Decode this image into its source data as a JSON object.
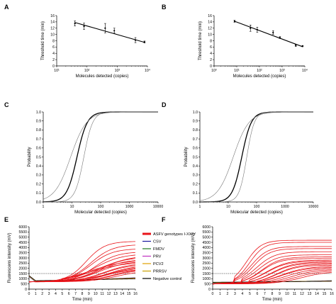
{
  "chart_data": [
    {
      "panel": "A",
      "type": "scatter",
      "xscale": "log",
      "xlim": [
        10,
        10000
      ],
      "ylim": [
        0,
        16
      ],
      "xticks": [
        {
          "v": 10,
          "t": "10¹"
        },
        {
          "v": 100,
          "t": "10²"
        },
        {
          "v": 1000,
          "t": "10³"
        },
        {
          "v": 10000,
          "t": "10⁴"
        }
      ],
      "yticks": [
        0,
        2,
        4,
        6,
        8,
        10,
        12,
        14,
        16
      ],
      "xlabel": "Molecules detected (copies)",
      "ylabel": "Threshold time (min)",
      "points": [
        {
          "x": 40,
          "y": 13.5,
          "err": 0.8
        },
        {
          "x": 80,
          "y": 12.6,
          "err": 1.0
        },
        {
          "x": 400,
          "y": 12.0,
          "err": 1.5
        },
        {
          "x": 800,
          "y": 11.2,
          "err": 0.8
        },
        {
          "x": 4000,
          "y": 8.2,
          "err": 0.8
        },
        {
          "x": 8000,
          "y": 7.6,
          "err": 0.3
        }
      ],
      "fit": [
        [
          40,
          13.8
        ],
        [
          8000,
          7.5
        ]
      ]
    },
    {
      "panel": "B",
      "type": "scatter",
      "xscale": "log",
      "xlim": [
        1,
        10000
      ],
      "ylim": [
        0,
        16
      ],
      "xticks": [
        {
          "v": 1,
          "t": "10⁰"
        },
        {
          "v": 10,
          "t": "10¹"
        },
        {
          "v": 100,
          "t": "10²"
        },
        {
          "v": 1000,
          "t": "10³"
        },
        {
          "v": 10000,
          "t": "10⁴"
        }
      ],
      "yticks": [
        0,
        2,
        4,
        6,
        8,
        10,
        12,
        14,
        16
      ],
      "xlabel": "Molecules detected (copies)",
      "ylabel": "Threshold time (min)",
      "points": [
        {
          "x": 8,
          "y": 14.2,
          "err": 0.3
        },
        {
          "x": 40,
          "y": 12.0,
          "err": 1.0
        },
        {
          "x": 80,
          "y": 11.5,
          "err": 0.8
        },
        {
          "x": 400,
          "y": 10.6,
          "err": 0.6
        },
        {
          "x": 800,
          "y": 9.0,
          "err": 0.3
        },
        {
          "x": 4000,
          "y": 6.5,
          "err": 0.3
        },
        {
          "x": 8000,
          "y": 6.3,
          "err": 0.2
        }
      ],
      "fit": [
        [
          8,
          14.2
        ],
        [
          8000,
          6.1
        ]
      ]
    },
    {
      "panel": "C",
      "type": "line",
      "xscale": "log",
      "xlim": [
        1,
        10000
      ],
      "ylim": [
        0,
        1
      ],
      "xticks": [
        {
          "v": 1,
          "t": "1"
        },
        {
          "v": 10,
          "t": "10"
        },
        {
          "v": 100,
          "t": "100"
        },
        {
          "v": 1000,
          "t": "1000"
        },
        {
          "v": 10000,
          "t": "10000"
        }
      ],
      "yticks": [
        0,
        0.1,
        0.2,
        0.3,
        0.4,
        0.5,
        0.6,
        0.7,
        0.8,
        0.9,
        1.0
      ],
      "xlabel": "Molecular detected (copies)",
      "ylabel": "Probability",
      "curves": [
        {
          "role": "main",
          "x50": 15,
          "k": 5.6
        },
        {
          "role": "lower",
          "x50": 9,
          "k": 3.6
        },
        {
          "role": "upper",
          "x50": 26,
          "k": 6.5
        }
      ]
    },
    {
      "panel": "D",
      "type": "line",
      "xscale": "log",
      "xlim": [
        1,
        10000
      ],
      "ylim": [
        0,
        1
      ],
      "xticks": [
        {
          "v": 1,
          "t": "1"
        },
        {
          "v": 10,
          "t": "10"
        },
        {
          "v": 100,
          "t": "100"
        },
        {
          "v": 1000,
          "t": "1000"
        },
        {
          "v": 10000,
          "t": "10000"
        }
      ],
      "yticks": [
        0,
        0.1,
        0.2,
        0.3,
        0.4,
        0.5,
        0.6,
        0.7,
        0.8,
        0.9,
        1.0
      ],
      "xlabel": "Molecular detected (copies)",
      "ylabel": "Probability",
      "curves": [
        {
          "role": "main",
          "x50": 30,
          "k": 6.0
        },
        {
          "role": "lower",
          "x50": 15,
          "k": 3.6
        },
        {
          "role": "upper",
          "x50": 45,
          "k": 7.5
        }
      ]
    },
    {
      "panel": "E",
      "type": "line",
      "xlim": [
        0,
        16
      ],
      "ylim": [
        0,
        6000
      ],
      "xticks": [
        0,
        1,
        2,
        3,
        4,
        5,
        6,
        7,
        8,
        9,
        10,
        11,
        12,
        13,
        14,
        15,
        16
      ],
      "yticks": [
        0,
        500,
        1000,
        1500,
        2000,
        2500,
        3000,
        3500,
        4000,
        4500,
        5000,
        5500,
        6000
      ],
      "xlabel": "Time (min)",
      "ylabel": "Fluorescens intensity (mV)",
      "threshold": 1500,
      "legend": [
        "ASFV genotypes I-XXIV",
        "CSV",
        "FMDV",
        "PRV",
        "PCV2",
        "PRRSV",
        "Negative control"
      ],
      "red_curves": [
        {
          "start": 4,
          "end": 4600,
          "k": 0.7,
          "mid": 10.5
        },
        {
          "start": 4,
          "end": 4300,
          "k": 0.6,
          "mid": 11
        },
        {
          "start": 5,
          "end": 3900,
          "k": 0.6,
          "mid": 11
        },
        {
          "start": 5,
          "end": 3600,
          "k": 0.6,
          "mid": 11.5
        },
        {
          "start": 5,
          "end": 3400,
          "k": 0.5,
          "mid": 11.5
        },
        {
          "start": 6,
          "end": 3100,
          "k": 0.5,
          "mid": 12
        },
        {
          "start": 6,
          "end": 2900,
          "k": 0.5,
          "mid": 12
        },
        {
          "start": 6,
          "end": 2700,
          "k": 0.5,
          "mid": 12
        },
        {
          "start": 7,
          "end": 2500,
          "k": 0.5,
          "mid": 12.5
        },
        {
          "start": 7,
          "end": 2400,
          "k": 0.5,
          "mid": 12.5
        },
        {
          "start": 7,
          "end": 2300,
          "k": 0.5,
          "mid": 13
        },
        {
          "start": 8,
          "end": 2200,
          "k": 0.5,
          "mid": 13
        },
        {
          "start": 8,
          "end": 2100,
          "k": 0.5,
          "mid": 13
        },
        {
          "start": 9,
          "end": 2000,
          "k": 0.5,
          "mid": 13.5
        },
        {
          "start": 9,
          "end": 1900,
          "k": 0.5,
          "mid": 13.5
        },
        {
          "start": 10,
          "end": 1800,
          "k": 0.5,
          "mid": 14
        },
        {
          "start": 5,
          "end": 2800,
          "k": 0.4,
          "mid": 11
        },
        {
          "start": 6,
          "end": 2600,
          "k": 0.4,
          "mid": 11
        },
        {
          "start": 7,
          "end": 3300,
          "k": 0.4,
          "mid": 12
        },
        {
          "start": 8,
          "end": 2000,
          "k": 0.4,
          "mid": 12.5
        }
      ],
      "neg_curves": [
        {
          "color": "#1a1aa0",
          "base": 700,
          "slope": 25
        },
        {
          "color": "#1f7a1f",
          "base": 720,
          "slope": 22
        },
        {
          "color": "#c030c0",
          "base": 740,
          "slope": 20
        },
        {
          "color": "#e0a000",
          "base": 760,
          "slope": 18
        },
        {
          "color": "#c9a000",
          "base": 780,
          "slope": 15
        },
        {
          "color": "#000000",
          "base": 800,
          "slope": 12
        }
      ]
    },
    {
      "panel": "F",
      "type": "line",
      "xlim": [
        0,
        16
      ],
      "ylim": [
        0,
        6000
      ],
      "xticks": [
        0,
        1,
        2,
        3,
        4,
        5,
        6,
        7,
        8,
        9,
        10,
        11,
        12,
        13,
        14,
        15,
        16
      ],
      "yticks": [
        0,
        500,
        1000,
        1500,
        2000,
        2500,
        3000,
        3500,
        4000,
        4500,
        5000,
        5500,
        6000
      ],
      "xlabel": "Time (min)",
      "ylabel": "Fluorescens intensity (mV)",
      "threshold": 1500,
      "red_curves": [
        {
          "start": 3,
          "end": 4700,
          "k": 1.0,
          "mid": 7.5
        },
        {
          "start": 3,
          "end": 4500,
          "k": 1.0,
          "mid": 7.8
        },
        {
          "start": 3,
          "end": 4100,
          "k": 0.9,
          "mid": 8
        },
        {
          "start": 3,
          "end": 3900,
          "k": 0.9,
          "mid": 8.2
        },
        {
          "start": 4,
          "end": 3600,
          "k": 0.8,
          "mid": 8.5
        },
        {
          "start": 4,
          "end": 3300,
          "k": 0.8,
          "mid": 8.7
        },
        {
          "start": 4,
          "end": 3100,
          "k": 0.8,
          "mid": 9
        },
        {
          "start": 4,
          "end": 2950,
          "k": 0.8,
          "mid": 9
        },
        {
          "start": 5,
          "end": 2800,
          "k": 0.7,
          "mid": 9.5
        },
        {
          "start": 5,
          "end": 2700,
          "k": 0.7,
          "mid": 9.5
        },
        {
          "start": 5,
          "end": 2600,
          "k": 0.7,
          "mid": 10
        },
        {
          "start": 5,
          "end": 2500,
          "k": 0.7,
          "mid": 10
        },
        {
          "start": 6,
          "end": 2400,
          "k": 0.7,
          "mid": 10.5
        },
        {
          "start": 6,
          "end": 2300,
          "k": 0.7,
          "mid": 10.5
        },
        {
          "start": 6,
          "end": 2200,
          "k": 0.6,
          "mid": 11
        },
        {
          "start": 7,
          "end": 2100,
          "k": 0.6,
          "mid": 11
        },
        {
          "start": 7,
          "end": 2000,
          "k": 0.6,
          "mid": 11.5
        },
        {
          "start": 8,
          "end": 1900,
          "k": 0.6,
          "mid": 12
        },
        {
          "start": 8,
          "end": 1800,
          "k": 0.6,
          "mid": 12.5
        },
        {
          "start": 9,
          "end": 1700,
          "k": 0.6,
          "mid": 13
        }
      ],
      "neg_curves": [
        {
          "color": "#1a1aa0",
          "base": 560,
          "slope": 16
        },
        {
          "color": "#1f7a1f",
          "base": 580,
          "slope": 14
        },
        {
          "color": "#c030c0",
          "base": 600,
          "slope": 12
        },
        {
          "color": "#e0a000",
          "base": 620,
          "slope": 10
        },
        {
          "color": "#c9a000",
          "base": 640,
          "slope": 8
        },
        {
          "color": "#000000",
          "base": 660,
          "slope": 6
        }
      ]
    }
  ],
  "colors": {
    "asfv": "#e8141a",
    "csv": "#1a1aa0",
    "fmdv": "#1f7a1f",
    "prv": "#c030c0",
    "pcv2": "#e0a000",
    "prrsv": "#c9a000",
    "negative": "#000000"
  }
}
